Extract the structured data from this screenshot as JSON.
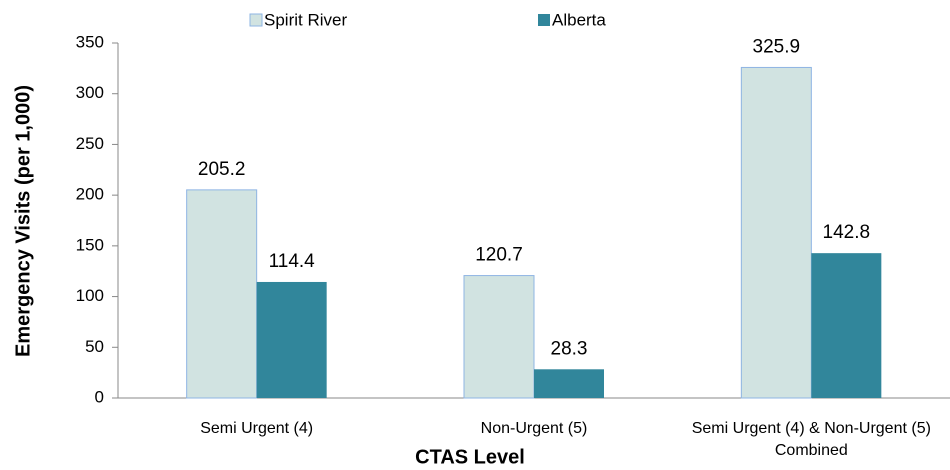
{
  "chart_data": {
    "type": "bar",
    "categories": [
      "Semi Urgent (4)",
      "Non-Urgent (5)",
      "Semi Urgent (4) & Non-Urgent (5) Combined"
    ],
    "series": [
      {
        "name": "Spirit River",
        "color": "#d1e3e1",
        "values": [
          205.2,
          120.7,
          325.9
        ]
      },
      {
        "name": "Alberta",
        "color": "#31869b",
        "values": [
          114.4,
          28.3,
          142.8
        ]
      }
    ],
    "x_label": "CTAS Level",
    "y_label": "Emergency Visits (per 1,000)",
    "ylim": [
      0,
      350
    ],
    "yticks": [
      0,
      50,
      100,
      150,
      200,
      250,
      300,
      350
    ],
    "grid": false,
    "legend": "top"
  }
}
